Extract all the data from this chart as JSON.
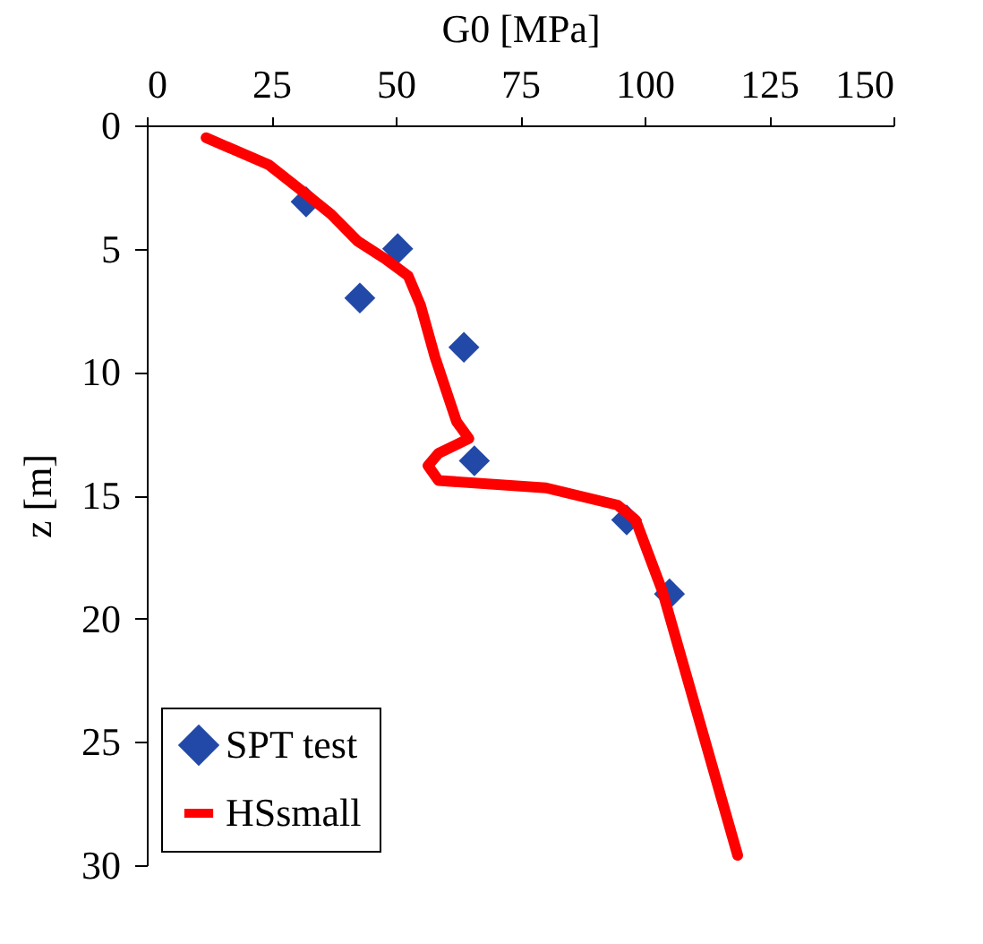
{
  "chart_data": {
    "type": "scatter",
    "xlabel": "G0 [MPa]",
    "ylabel": "z [m]",
    "xlim": [
      0,
      150
    ],
    "xticks": [
      0,
      25,
      50,
      75,
      100,
      125,
      150
    ],
    "ylim": [
      30,
      0
    ],
    "yticks": [
      0,
      5,
      10,
      15,
      20,
      25,
      30
    ],
    "legend": "bottom left",
    "grid": false,
    "series": [
      {
        "name": "SPT test",
        "marker": "diamond",
        "color": "#2249a8",
        "x": [
          32,
          50.4,
          42.8,
          63.7,
          65.8,
          96.4,
          105
        ],
        "values": [
          3.1,
          5.0,
          7.0,
          9.0,
          13.6,
          16.0,
          19.0
        ]
      },
      {
        "name": "HSsmall",
        "type": "line",
        "color": "#ff0000",
        "x": [
          11.9,
          24.5,
          32.7,
          37,
          42.4,
          47.8,
          52.5,
          55,
          57.9,
          62.2,
          64.7,
          58.6,
          56.5,
          58.6,
          80.2,
          94.6,
          98.2,
          103.6,
          118.7
        ],
        "values": [
          0.5,
          1.6,
          2.9,
          3.6,
          4.7,
          5.4,
          6.1,
          7.3,
          9.4,
          12.0,
          12.7,
          13.3,
          13.8,
          14.4,
          14.7,
          15.4,
          16.0,
          18.9,
          29.6
        ]
      }
    ]
  }
}
